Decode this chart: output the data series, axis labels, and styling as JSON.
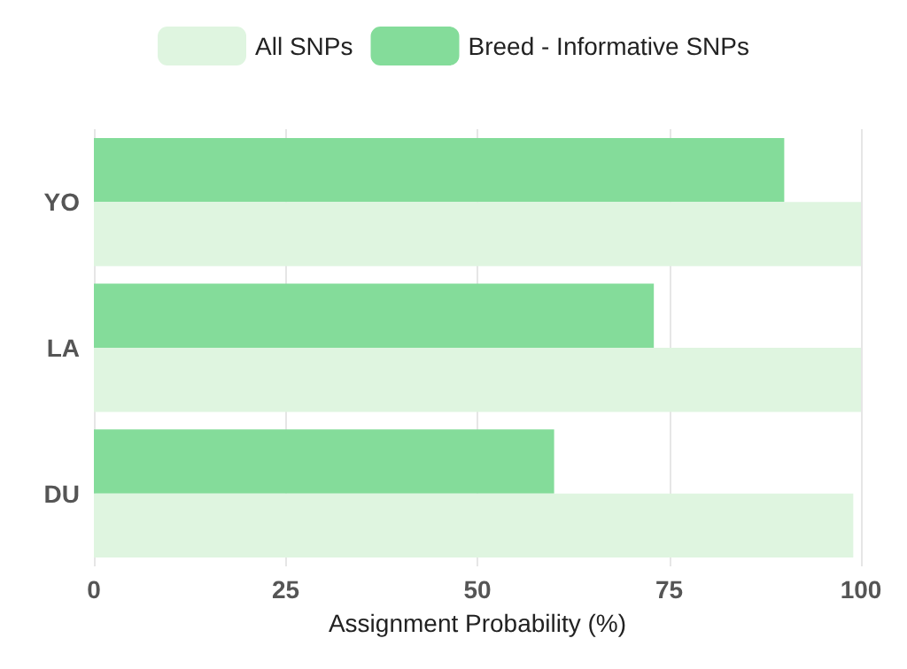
{
  "chart_data": {
    "type": "bar",
    "orientation": "horizontal",
    "categories": [
      "YO",
      "LA",
      "DU"
    ],
    "series": [
      {
        "name": "All SNPs",
        "color": "#dff5e0",
        "values": [
          100,
          100,
          99
        ]
      },
      {
        "name": "Breed - Informative SNPs",
        "color": "#84dc9a",
        "values": [
          90,
          73,
          60
        ]
      }
    ],
    "xlabel": "Assignment Probability (%)",
    "xlim": [
      0,
      100
    ],
    "xticks": [
      0,
      25,
      50,
      75,
      100
    ],
    "grid": "x",
    "legend": "top"
  }
}
